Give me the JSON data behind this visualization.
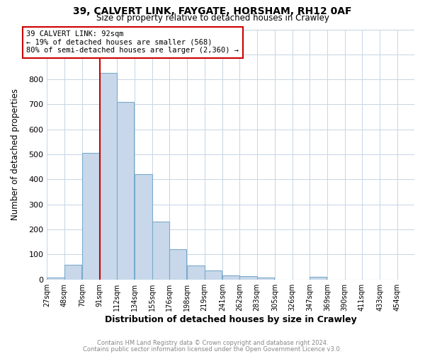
{
  "title1": "39, CALVERT LINK, FAYGATE, HORSHAM, RH12 0AF",
  "title2": "Size of property relative to detached houses in Crawley",
  "xlabel": "Distribution of detached houses by size in Crawley",
  "ylabel": "Number of detached properties",
  "bar_left_edges": [
    27,
    48,
    70,
    91,
    112,
    134,
    155,
    176,
    198,
    219,
    241,
    262,
    283,
    305,
    326,
    347,
    369,
    390,
    411,
    433
  ],
  "bar_heights": [
    8,
    60,
    505,
    825,
    710,
    420,
    230,
    120,
    57,
    35,
    15,
    12,
    8,
    0,
    0,
    10,
    0,
    0,
    0,
    0
  ],
  "bin_width": 21,
  "tick_labels": [
    "27sqm",
    "48sqm",
    "70sqm",
    "91sqm",
    "112sqm",
    "134sqm",
    "155sqm",
    "176sqm",
    "198sqm",
    "219sqm",
    "241sqm",
    "262sqm",
    "283sqm",
    "305sqm",
    "326sqm",
    "347sqm",
    "369sqm",
    "390sqm",
    "411sqm",
    "433sqm",
    "454sqm"
  ],
  "tick_positions": [
    27,
    48,
    70,
    91,
    112,
    134,
    155,
    176,
    198,
    219,
    241,
    262,
    283,
    305,
    326,
    347,
    369,
    390,
    411,
    433,
    454
  ],
  "bar_color": "#c8d8ea",
  "bar_edge_color": "#7aaacc",
  "grid_color": "#c5d5e5",
  "background_color": "#ffffff",
  "fig_background": "#ffffff",
  "vline_x": 91,
  "vline_color": "#cc0000",
  "ylim": [
    0,
    1000
  ],
  "annotation_text": "39 CALVERT LINK: 92sqm\n← 19% of detached houses are smaller (568)\n80% of semi-detached houses are larger (2,360) →",
  "annotation_box_color": "#ffffff",
  "annotation_box_edge": "#cc0000",
  "footer1": "Contains HM Land Registry data © Crown copyright and database right 2024.",
  "footer2": "Contains public sector information licensed under the Open Government Licence v3.0.",
  "footer_color": "#888888"
}
